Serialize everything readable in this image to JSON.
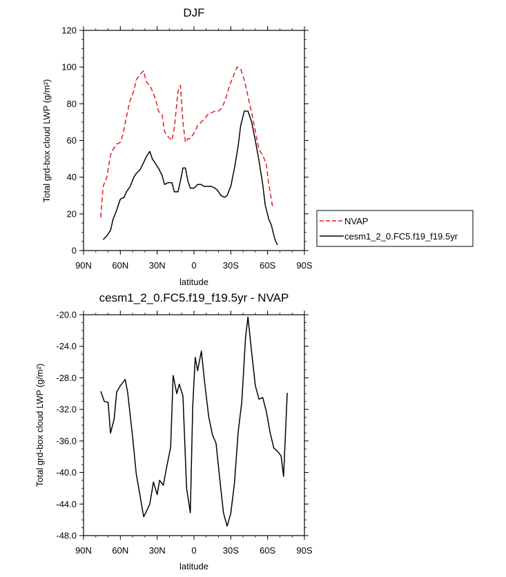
{
  "chart_data": [
    {
      "type": "line",
      "title": "DJF",
      "xlabel": "latitude",
      "ylabel": "Total grd-box cloud LWP (g/m²)",
      "xlim": [
        -90,
        90
      ],
      "ylim": [
        0,
        120
      ],
      "x_ticks": [
        -90,
        -60,
        -30,
        0,
        30,
        60,
        90
      ],
      "x_tick_labels": [
        "90N",
        "60N",
        "30N",
        "0",
        "30S",
        "60S",
        "90S"
      ],
      "y_ticks": [
        0,
        20,
        40,
        60,
        80,
        100,
        120
      ],
      "y_tick_labels": [
        "0",
        "20",
        "40",
        "60",
        "80",
        "100",
        "120"
      ],
      "legend_position": "right",
      "series": [
        {
          "name": "NVAP",
          "color": "#e41a1c",
          "dash": "dashed",
          "points": [
            [
              -76,
              18
            ],
            [
              -74,
              35
            ],
            [
              -71,
              40
            ],
            [
              -68,
              52
            ],
            [
              -66,
              55
            ],
            [
              -63,
              58
            ],
            [
              -60,
              59
            ],
            [
              -58,
              63
            ],
            [
              -55,
              73
            ],
            [
              -52,
              82
            ],
            [
              -49,
              87
            ],
            [
              -47,
              93
            ],
            [
              -44,
              96
            ],
            [
              -41,
              98
            ],
            [
              -39,
              92
            ],
            [
              -36,
              90
            ],
            [
              -34,
              87
            ],
            [
              -31,
              82
            ],
            [
              -29,
              76
            ],
            [
              -26,
              74
            ],
            [
              -24,
              65
            ],
            [
              -21,
              62
            ],
            [
              -18,
              60
            ],
            [
              -16,
              67
            ],
            [
              -13,
              87
            ],
            [
              -11,
              90
            ],
            [
              -9,
              70
            ],
            [
              -7,
              59
            ],
            [
              -5,
              61
            ],
            [
              -3,
              61
            ],
            [
              0,
              64
            ],
            [
              3,
              68
            ],
            [
              6,
              70
            ],
            [
              9,
              72
            ],
            [
              11,
              74
            ],
            [
              14,
              75
            ],
            [
              17,
              76
            ],
            [
              20,
              76
            ],
            [
              23,
              78
            ],
            [
              26,
              83
            ],
            [
              29,
              90
            ],
            [
              32,
              95
            ],
            [
              35,
              100
            ],
            [
              38,
              99
            ],
            [
              41,
              93
            ],
            [
              44,
              84
            ],
            [
              47,
              75
            ],
            [
              50,
              65
            ],
            [
              53,
              55
            ],
            [
              56,
              52
            ],
            [
              59,
              47
            ],
            [
              61,
              36
            ],
            [
              64,
              24
            ]
          ]
        },
        {
          "name": "cesm1_2_0.FC5.f19_f19.5yr",
          "color": "#000000",
          "dash": "solid",
          "points": [
            [
              -74,
              6
            ],
            [
              -71,
              8
            ],
            [
              -68,
              11
            ],
            [
              -66,
              17
            ],
            [
              -63,
              22
            ],
            [
              -60,
              28
            ],
            [
              -57,
              29
            ],
            [
              -55,
              32
            ],
            [
              -52,
              35
            ],
            [
              -49,
              40
            ],
            [
              -47,
              42
            ],
            [
              -44,
              44
            ],
            [
              -41,
              48
            ],
            [
              -39,
              51
            ],
            [
              -36,
              54
            ],
            [
              -34,
              50
            ],
            [
              -31,
              47
            ],
            [
              -29,
              45
            ],
            [
              -26,
              41
            ],
            [
              -24,
              36
            ],
            [
              -21,
              37
            ],
            [
              -18,
              37
            ],
            [
              -16,
              32
            ],
            [
              -13,
              32
            ],
            [
              -11,
              38
            ],
            [
              -9,
              45
            ],
            [
              -7,
              45
            ],
            [
              -5,
              38
            ],
            [
              -3,
              34
            ],
            [
              0,
              34
            ],
            [
              3,
              36
            ],
            [
              6,
              36
            ],
            [
              8,
              35
            ],
            [
              11,
              35
            ],
            [
              14,
              35
            ],
            [
              17,
              34
            ],
            [
              19,
              33
            ],
            [
              22,
              30
            ],
            [
              25,
              29
            ],
            [
              27,
              30
            ],
            [
              30,
              35
            ],
            [
              33,
              45
            ],
            [
              36,
              57
            ],
            [
              38,
              68
            ],
            [
              41,
              76
            ],
            [
              44,
              76
            ],
            [
              47,
              70
            ],
            [
              50,
              60
            ],
            [
              53,
              49
            ],
            [
              56,
              36
            ],
            [
              58,
              25
            ],
            [
              61,
              17
            ],
            [
              63,
              14
            ],
            [
              66,
              6
            ],
            [
              68,
              3
            ]
          ]
        }
      ]
    },
    {
      "type": "line",
      "title": "cesm1_2_0.FC5.f19_f19.5yr - NVAP",
      "xlabel": "latitude",
      "ylabel": "Total grd-box cloud LWP (g/m²)",
      "xlim": [
        -90,
        90
      ],
      "ylim": [
        -48,
        -20
      ],
      "x_ticks": [
        -90,
        -60,
        -30,
        0,
        30,
        60,
        90
      ],
      "x_tick_labels": [
        "90N",
        "60N",
        "30N",
        "0",
        "30S",
        "60S",
        "90S"
      ],
      "y_ticks": [
        -48,
        -44,
        -40,
        -36,
        -32,
        -28,
        -24,
        -20
      ],
      "y_tick_labels": [
        "-48.0",
        "-44.0",
        "-40.0",
        "-36.0",
        "-32.0",
        "-28.0",
        "-24.0",
        "-20.0"
      ],
      "series": [
        {
          "color": "#000000",
          "dash": "solid",
          "points": [
            [
              -76,
              -29.7
            ],
            [
              -73,
              -31
            ],
            [
              -70,
              -31.1
            ],
            [
              -68,
              -35
            ],
            [
              -65,
              -33.2
            ],
            [
              -63,
              -29.8
            ],
            [
              -60,
              -29
            ],
            [
              -56,
              -28.2
            ],
            [
              -54,
              -29.9
            ],
            [
              -50,
              -35.5
            ],
            [
              -47,
              -40.2
            ],
            [
              -44,
              -42.9
            ],
            [
              -41,
              -45.6
            ],
            [
              -39,
              -45
            ],
            [
              -36,
              -44
            ],
            [
              -33,
              -41.2
            ],
            [
              -30,
              -42.8
            ],
            [
              -28,
              -41
            ],
            [
              -25,
              -41.6
            ],
            [
              -22,
              -39.1
            ],
            [
              -19,
              -36.8
            ],
            [
              -17,
              -27.7
            ],
            [
              -14,
              -30
            ],
            [
              -12,
              -28.8
            ],
            [
              -9,
              -30.3
            ],
            [
              -6,
              -42
            ],
            [
              -3,
              -45.1
            ],
            [
              -1,
              -31.6
            ],
            [
              1,
              -25.4
            ],
            [
              3,
              -27.1
            ],
            [
              6,
              -24.6
            ],
            [
              9,
              -29
            ],
            [
              12,
              -32.9
            ],
            [
              15,
              -35.2
            ],
            [
              18,
              -36.3
            ],
            [
              21,
              -40.8
            ],
            [
              24,
              -45.1
            ],
            [
              27,
              -46.8
            ],
            [
              30,
              -45.2
            ],
            [
              33,
              -41.3
            ],
            [
              36,
              -34.9
            ],
            [
              39,
              -31
            ],
            [
              42,
              -22.9
            ],
            [
              44,
              -20.3
            ],
            [
              47,
              -24.8
            ],
            [
              50,
              -29
            ],
            [
              53,
              -30.7
            ],
            [
              56,
              -30.5
            ],
            [
              59,
              -32.3
            ],
            [
              62,
              -34.9
            ],
            [
              65,
              -36.9
            ],
            [
              68,
              -37.3
            ],
            [
              71,
              -37.9
            ],
            [
              73,
              -40.5
            ],
            [
              76,
              -29.9
            ]
          ]
        }
      ]
    }
  ]
}
